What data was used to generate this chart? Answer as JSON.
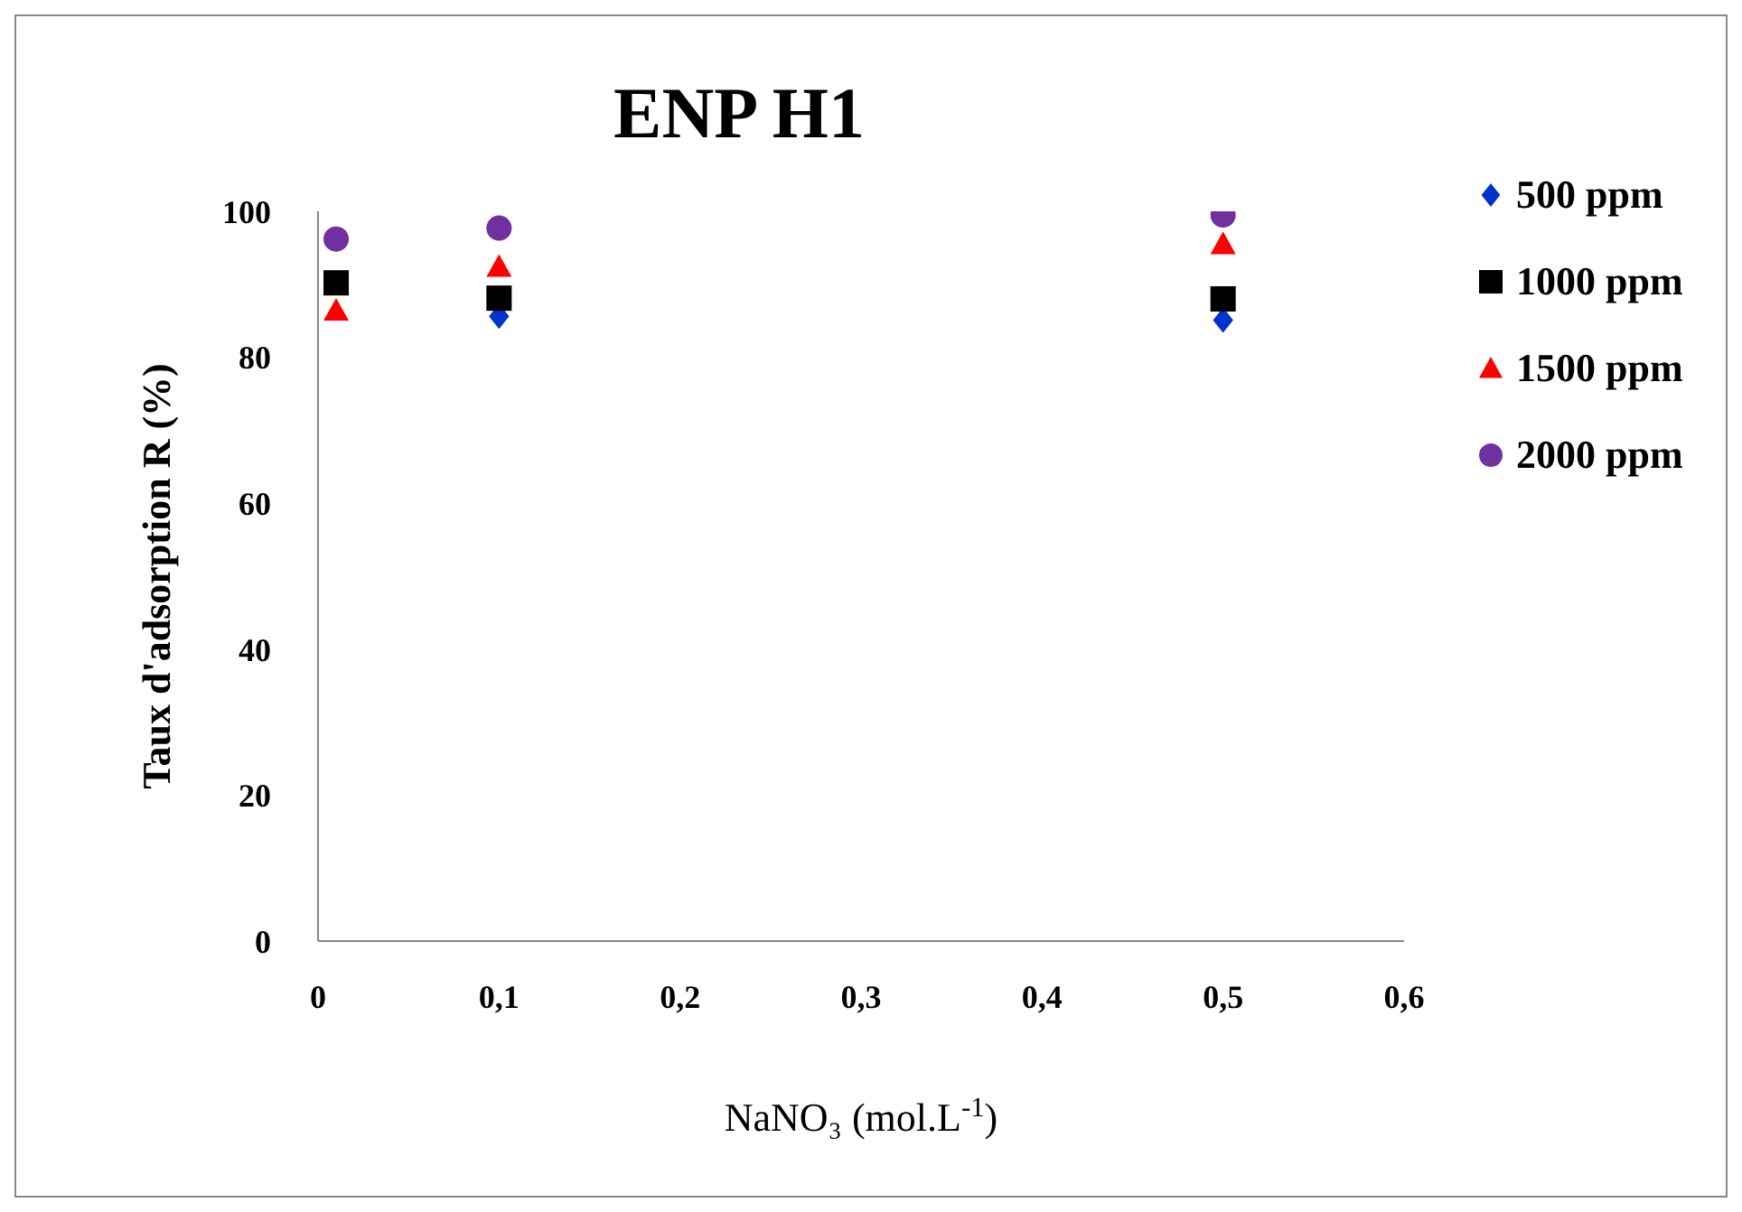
{
  "chart_data": {
    "type": "scatter",
    "title": "ENP H1",
    "xlabel": "NaNO₃ (mol.L$^{-1}$)",
    "ylabel": "Taux d'adsorption R (%)",
    "x": [
      0.01,
      0.1,
      0.5
    ],
    "series": [
      {
        "name": "500 ppm",
        "color": "#0033cc",
        "marker": "diamond",
        "values": [
          null,
          85.6,
          85.1
        ]
      },
      {
        "name": "1000 ppm",
        "color": "#000000",
        "marker": "square",
        "values": [
          90.2,
          88.1,
          88.0
        ]
      },
      {
        "name": "1500 ppm",
        "color": "#ff0000",
        "marker": "triangle",
        "values": [
          86.4,
          92.4,
          95.5
        ]
      },
      {
        "name": "2000 ppm",
        "color": "#7030a0",
        "marker": "circle",
        "values": [
          96.2,
          97.7,
          99.5
        ]
      }
    ],
    "xlim": [
      0,
      0.6
    ],
    "xticks": [
      {
        "value": 0,
        "label": "0"
      },
      {
        "value": 0.1,
        "label": "0,1"
      },
      {
        "value": 0.2,
        "label": "0,2"
      },
      {
        "value": 0.3,
        "label": "0,3"
      },
      {
        "value": 0.4,
        "label": "0,4"
      },
      {
        "value": 0.5,
        "label": "0,5"
      },
      {
        "value": 0.6,
        "label": "0,6"
      }
    ],
    "ylim": [
      0,
      100
    ],
    "yticks": [
      0,
      20,
      40,
      60,
      80,
      100
    ],
    "grid": false,
    "legend": "right"
  }
}
